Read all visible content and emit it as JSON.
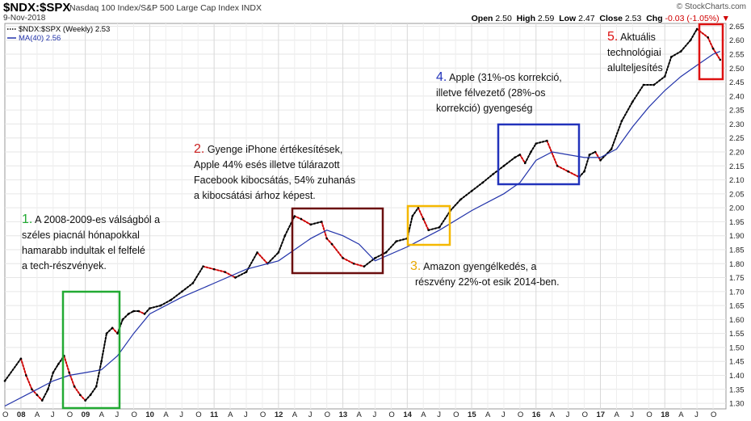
{
  "header": {
    "symbol": "$NDX:$SPX",
    "description": "Nasdaq 100 Index/S&P 500 Large Cap Index  INDX",
    "date": "9-Nov-2018",
    "brand": "© StockCharts.com",
    "open_label": "Open",
    "open": "2.50",
    "high_label": "High",
    "high": "2.59",
    "low_label": "Low",
    "low": "2.47",
    "close_label": "Close",
    "close": "2.53",
    "chg_label": "Chg",
    "chg": "-0.03 (-1.05%)",
    "chg_marker": "▼"
  },
  "legend": {
    "ratio": "$NDX:$SPX (Weekly) 2.53",
    "ma": "MA(40) 2.56"
  },
  "colors": {
    "up": "#000000",
    "down": "#cc0000",
    "ma": "#2233aa",
    "box1": "#22aa33",
    "box2": "#6b0f0f",
    "box3": "#f5b800",
    "box4": "#2233bb",
    "box5": "#dd1111",
    "num1": "#22aa33",
    "num2": "#cc2222",
    "num3": "#e8a800",
    "num4": "#2233bb",
    "num5": "#dd1111"
  },
  "annotations": [
    {
      "num": "1.",
      "lines": [
        "A 2008-2009-es válságból a",
        "széles piacnál hónapokkal",
        "hamarabb indultak el felfelé",
        "a tech-részvények."
      ]
    },
    {
      "num": "2.",
      "lines": [
        "Gyenge iPhone értékesítések,",
        "Apple 44% esés illetve túlárazott",
        "Facebook kibocsátás, 54% zuhanás",
        "a kibocsátási árhoz képest."
      ]
    },
    {
      "num": "3.",
      "lines": [
        "Amazon gyengélkedés, a",
        "részvény 22%-ot esik 2014-ben."
      ]
    },
    {
      "num": "4.",
      "lines": [
        "Apple (31%-os korrekció,",
        "illetve félvezető (28%-os",
        "korrekció) gyengeség"
      ]
    },
    {
      "num": "5.",
      "lines": [
        "Aktuális",
        "technológiai",
        "alulteljesítés"
      ]
    }
  ],
  "chart_data": {
    "type": "line",
    "title": "$NDX:$SPX",
    "frequency": "Weekly",
    "ylim": [
      1.28,
      2.66
    ],
    "y_ticks": [
      1.3,
      1.35,
      1.4,
      1.45,
      1.5,
      1.55,
      1.6,
      1.65,
      1.7,
      1.75,
      1.8,
      1.85,
      1.9,
      1.95,
      2.0,
      2.05,
      2.1,
      2.15,
      2.2,
      2.25,
      2.3,
      2.35,
      2.4,
      2.45,
      2.5,
      2.55,
      2.6,
      2.65
    ],
    "x_ticks": [
      "08",
      "A",
      "J",
      "O",
      "09",
      "A",
      "J",
      "O",
      "10",
      "A",
      "J",
      "O",
      "11",
      "A",
      "J",
      "O",
      "12",
      "A",
      "J",
      "O",
      "13",
      "A",
      "J",
      "O",
      "14",
      "A",
      "J",
      "O",
      "15",
      "A",
      "J",
      "O",
      "16",
      "A",
      "J",
      "O",
      "17",
      "A",
      "J",
      "O",
      "18",
      "A",
      "J",
      "O"
    ],
    "x_ticks_label": "O",
    "series": [
      {
        "name": "$NDX:$SPX",
        "x": [
          2007.75,
          2008.0,
          2008.08,
          2008.17,
          2008.25,
          2008.33,
          2008.42,
          2008.5,
          2008.58,
          2008.67,
          2008.75,
          2008.83,
          2008.92,
          2009.0,
          2009.08,
          2009.17,
          2009.25,
          2009.33,
          2009.42,
          2009.5,
          2009.58,
          2009.67,
          2009.75,
          2009.83,
          2009.92,
          2010.0,
          2010.17,
          2010.33,
          2010.5,
          2010.67,
          2010.83,
          2011.0,
          2011.17,
          2011.33,
          2011.5,
          2011.67,
          2011.83,
          2012.0,
          2012.1,
          2012.25,
          2012.35,
          2012.5,
          2012.67,
          2012.75,
          2012.83,
          2013.0,
          2013.17,
          2013.33,
          2013.5,
          2013.67,
          2013.83,
          2014.0,
          2014.08,
          2014.17,
          2014.25,
          2014.33,
          2014.5,
          2014.67,
          2014.83,
          2015.0,
          2015.17,
          2015.33,
          2015.5,
          2015.67,
          2015.75,
          2015.83,
          2015.92,
          2016.0,
          2016.17,
          2016.33,
          2016.5,
          2016.67,
          2016.75,
          2016.83,
          2016.92,
          2017.0,
          2017.17,
          2017.33,
          2017.5,
          2017.67,
          2017.83,
          2018.0,
          2018.1,
          2018.25,
          2018.4,
          2018.5,
          2018.67,
          2018.75,
          2018.86
        ],
        "values": [
          1.38,
          1.46,
          1.4,
          1.35,
          1.33,
          1.31,
          1.35,
          1.41,
          1.44,
          1.47,
          1.41,
          1.36,
          1.33,
          1.31,
          1.33,
          1.36,
          1.45,
          1.55,
          1.57,
          1.55,
          1.6,
          1.62,
          1.63,
          1.63,
          1.62,
          1.64,
          1.65,
          1.67,
          1.7,
          1.73,
          1.79,
          1.78,
          1.77,
          1.75,
          1.77,
          1.84,
          1.8,
          1.84,
          1.9,
          1.97,
          1.96,
          1.94,
          1.95,
          1.89,
          1.87,
          1.82,
          1.8,
          1.79,
          1.82,
          1.84,
          1.88,
          1.89,
          1.97,
          2.0,
          1.96,
          1.92,
          1.93,
          1.99,
          2.03,
          2.06,
          2.09,
          2.12,
          2.15,
          2.18,
          2.19,
          2.16,
          2.2,
          2.23,
          2.24,
          2.15,
          2.13,
          2.11,
          2.13,
          2.19,
          2.2,
          2.17,
          2.21,
          2.31,
          2.38,
          2.44,
          2.44,
          2.47,
          2.54,
          2.56,
          2.6,
          2.64,
          2.61,
          2.57,
          2.53
        ]
      },
      {
        "name": "MA(40)",
        "x": [
          2007.75,
          2008.25,
          2008.5,
          2008.75,
          2009.0,
          2009.25,
          2009.5,
          2009.75,
          2010.0,
          2010.5,
          2011.0,
          2011.5,
          2012.0,
          2012.25,
          2012.5,
          2012.75,
          2013.0,
          2013.25,
          2013.5,
          2014.0,
          2014.5,
          2015.0,
          2015.5,
          2015.75,
          2016.0,
          2016.25,
          2016.5,
          2016.75,
          2017.0,
          2017.25,
          2017.5,
          2017.75,
          2018.0,
          2018.25,
          2018.5,
          2018.75,
          2018.86
        ],
        "values": [
          1.29,
          1.35,
          1.38,
          1.4,
          1.41,
          1.42,
          1.47,
          1.55,
          1.62,
          1.68,
          1.73,
          1.78,
          1.81,
          1.85,
          1.89,
          1.92,
          1.9,
          1.87,
          1.81,
          1.86,
          1.92,
          1.99,
          2.05,
          2.09,
          2.17,
          2.2,
          2.19,
          2.18,
          2.18,
          2.21,
          2.29,
          2.36,
          2.42,
          2.47,
          2.51,
          2.55,
          2.56
        ]
      }
    ]
  }
}
